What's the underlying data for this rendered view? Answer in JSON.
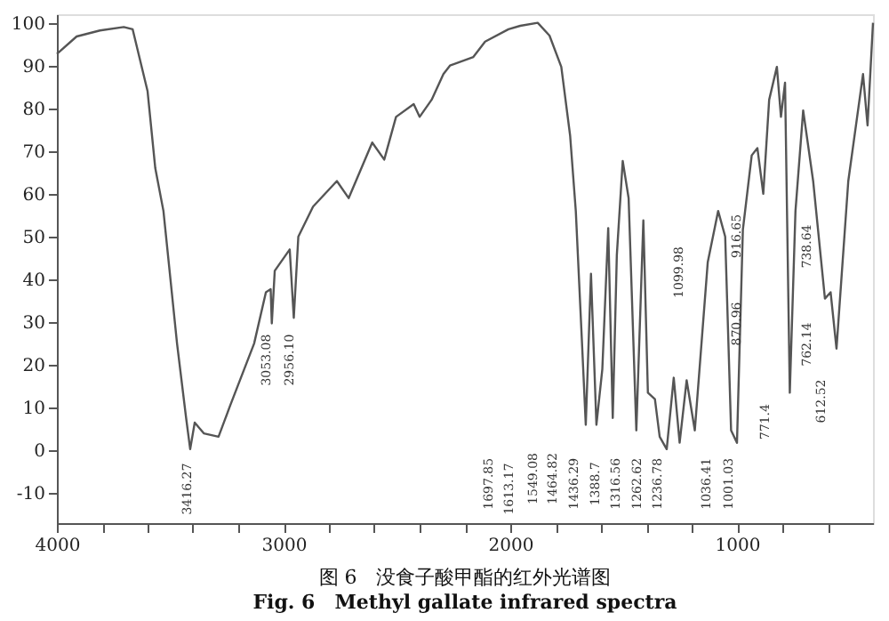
{
  "chart_data": {
    "type": "line",
    "title": "图 6　没食子酸甲酯的红外光谱图",
    "subtitle": "Fig. 6　Methyl gallate infrared spectra",
    "x": [
      4000,
      3913,
      3810,
      3705,
      3666,
      3600,
      3566,
      3530,
      3470,
      3430,
      3412,
      3392,
      3352,
      3287,
      3235,
      3130,
      3078,
      3057,
      3052,
      3039,
      2973,
      2955,
      2935,
      2870,
      2765,
      2713,
      2609,
      2556,
      2504,
      2426,
      2400,
      2347,
      2295,
      2266,
      2163,
      2111,
      2008,
      1956,
      1879,
      1827,
      1775,
      1736,
      1711,
      1685,
      1667,
      1644,
      1620,
      1594,
      1568,
      1548,
      1530,
      1504,
      1478,
      1444,
      1413,
      1393,
      1362,
      1341,
      1310,
      1279,
      1253,
      1222,
      1186,
      1129,
      1083,
      1052,
      1026,
      1000,
      974,
      935,
      910,
      884,
      858,
      824,
      806,
      788,
      767,
      742,
      708,
      664,
      612,
      587,
      561,
      509,
      444,
      424,
      400
    ],
    "series": [
      {
        "color": "#555555",
        "values": [
          92.7,
          96.8,
          98.2,
          99,
          98.5,
          84,
          66,
          56,
          25,
          7.6,
          0.3,
          6.5,
          4,
          3.2,
          10.6,
          25,
          37,
          37.7,
          29.7,
          42,
          47,
          31,
          50,
          57,
          63,
          59,
          72,
          68,
          78,
          81,
          78,
          82,
          88,
          90,
          92,
          95.6,
          98.5,
          99.3,
          100,
          97,
          89.7,
          73.6,
          56,
          26.7,
          6,
          41.3,
          6,
          19,
          52,
          7.6,
          45.7,
          67.7,
          59,
          4.7,
          53.8,
          13.5,
          12,
          3.2,
          0.3,
          17,
          1.8,
          16.4,
          4.7,
          44,
          56,
          50,
          4.7,
          1.8,
          51.6,
          69,
          70.7,
          60,
          82,
          89.7,
          78,
          86,
          13.5,
          56,
          79.5,
          63,
          35.5,
          37,
          23.8,
          63,
          88,
          76,
          100
        ]
      }
    ],
    "xlim": [
      4000,
      400
    ],
    "xticks": [
      4000,
      {
        "value": 3800,
        "label": null
      },
      {
        "value": 3600,
        "label": null
      },
      {
        "value": 3400,
        "label": null
      },
      {
        "value": 3200,
        "label": null
      },
      3000,
      {
        "value": 2800,
        "label": null
      },
      {
        "value": 2600,
        "label": null
      },
      {
        "value": 2400,
        "label": null
      },
      {
        "value": 2200,
        "label": null
      },
      2000,
      {
        "value": 1800,
        "label": null
      },
      {
        "value": 1600,
        "label": null
      },
      {
        "value": 1400,
        "label": null
      },
      {
        "value": 1200,
        "label": null
      },
      1000,
      {
        "value": 800,
        "label": null
      },
      {
        "value": 600,
        "label": null
      }
    ],
    "ylim": [
      -17,
      102
    ],
    "yticks": [
      -10,
      0,
      10,
      20,
      30,
      40,
      50,
      60,
      70,
      80,
      90,
      100
    ],
    "grid": false,
    "marker": "none",
    "line_style": "solid",
    "annotations": [
      "3416.27",
      "3053.08",
      "2956.10",
      "1697.85",
      "1613.17",
      "1549.08",
      "1464.82",
      "1436.29",
      "1388.7",
      "1316.56",
      "1262.62",
      "1236.78",
      "1036.41",
      "1001.03",
      "1099.98",
      "916.65",
      "870.96",
      "771.4",
      "762.14",
      "738.64",
      "612.52"
    ]
  }
}
